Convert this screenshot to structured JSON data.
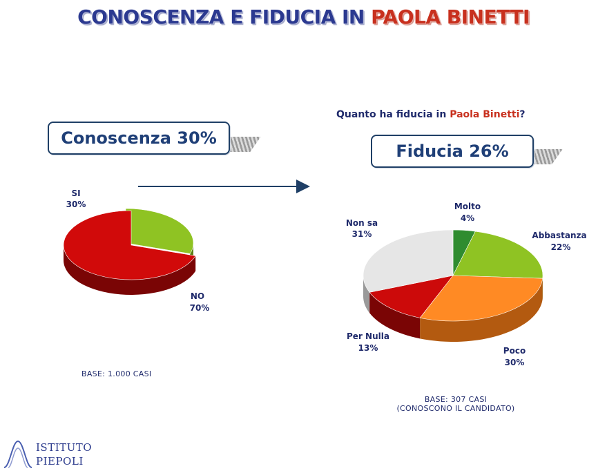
{
  "title": {
    "part1": "CONOSCENZA E FIDUCIA IN ",
    "part2": "PAOLA BINETTI"
  },
  "question": {
    "part1": "Quanto ha fiducia in ",
    "part2": "Paola Binetti",
    "part3": "?"
  },
  "callouts": {
    "left": "Conoscenza 30%",
    "right": "Fiducia 26%"
  },
  "bases": {
    "left": "BASE: 1.000 CASI",
    "right_line1": "BASE: 307 CASI",
    "right_line2": "(CONOSCONO IL CANDIDATO)"
  },
  "logo": {
    "line1": "ISTITUTO",
    "line2": "PIEPOLI"
  },
  "colors": {
    "title": "#2b3990",
    "highlight": "#c8301e",
    "navy": "#1f2a6b",
    "red": "#cc0000",
    "green_light": "#99cc33",
    "green_dark": "#2e8b2e",
    "orange": "#ff8c2a",
    "gray": "#e3e3e3"
  },
  "chart_data": [
    {
      "type": "pie",
      "slices": [
        {
          "label": "SI",
          "value": 30,
          "value_label": "30%",
          "color": "#8fc323",
          "side": "#5c8016"
        },
        {
          "label": "NO",
          "value": 70,
          "value_label": "70%",
          "color": "#d10a0a",
          "side": "#7a0505"
        }
      ]
    },
    {
      "type": "pie",
      "slices": [
        {
          "label": "Molto",
          "value": 4,
          "value_label": "4%",
          "color": "#2f8c2f",
          "side": "#1d5a1d"
        },
        {
          "label": "Abbastanza",
          "value": 22,
          "value_label": "22%",
          "color": "#8fc323",
          "side": "#5c8016"
        },
        {
          "label": "Poco",
          "value": 30,
          "value_label": "30%",
          "color": "#ff8a24",
          "side": "#b35a10"
        },
        {
          "label": "Per Nulla",
          "value": 13,
          "value_label": "13%",
          "color": "#cc0a0a",
          "side": "#7a0505"
        },
        {
          "label": "Non sa",
          "value": 31,
          "value_label": "31%",
          "color": "#e6e6e6",
          "side": "#9a9a9a"
        }
      ]
    }
  ]
}
